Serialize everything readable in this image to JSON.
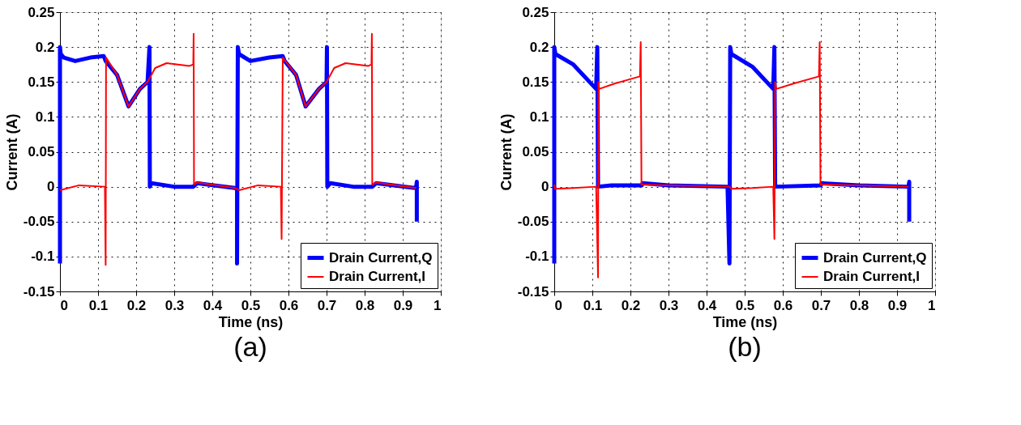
{
  "chart_data": [
    {
      "type": "line",
      "xlabel": "Time (ns)",
      "ylabel": "Current (A)",
      "annotations": [
        "(a)"
      ],
      "xlim": [
        0,
        1
      ],
      "ylim": [
        -0.15,
        0.25
      ],
      "xticks": [
        0,
        0.1,
        0.2,
        0.3,
        0.4,
        0.5,
        0.6,
        0.7,
        0.8,
        0.9,
        1
      ],
      "yticks": [
        -0.15,
        -0.1,
        -0.05,
        0,
        0.05,
        0.1,
        0.15,
        0.2,
        0.25
      ],
      "grid": true,
      "legend": "bottom right",
      "line_style": "solid",
      "series": [
        {
          "name": "Drain Current,Q",
          "color": "#0000ff",
          "x": [
            0,
            0,
            0.002,
            0.01,
            0.04,
            0.08,
            0.115,
            0.12,
            0.15,
            0.18,
            0.21,
            0.23,
            0.235,
            0.236,
            0.24,
            0.3,
            0.35,
            0.36,
            0.46,
            0.465,
            0.465,
            0.467,
            0.47,
            0.5,
            0.55,
            0.585,
            0.59,
            0.62,
            0.645,
            0.68,
            0.7,
            0.701,
            0.702,
            0.71,
            0.77,
            0.82,
            0.83,
            0.935,
            0.937,
            0.937
          ],
          "values": [
            -0.11,
            0.2,
            0.19,
            0.185,
            0.18,
            0.185,
            0.187,
            0.18,
            0.16,
            0.115,
            0.14,
            0.15,
            0.2,
            0.0,
            0.005,
            0,
            0,
            0.005,
            -0.002,
            -0.003,
            -0.11,
            0.2,
            0.19,
            0.18,
            0.185,
            0.187,
            0.18,
            0.16,
            0.115,
            0.14,
            0.15,
            0.2,
            0,
            0.005,
            0,
            0,
            0.005,
            -0.002,
            0.007,
            -0.05
          ]
        },
        {
          "name": "Drain Current,I",
          "color": "#ff0000",
          "x": [
            0,
            0.05,
            0.118,
            0.12,
            0.121,
            0.15,
            0.18,
            0.21,
            0.23,
            0.25,
            0.28,
            0.34,
            0.35,
            0.351,
            0.352,
            0.36,
            0.46,
            0.47,
            0.52,
            0.58,
            0.582,
            0.585,
            0.62,
            0.645,
            0.68,
            0.7,
            0.72,
            0.75,
            0.81,
            0.818,
            0.819,
            0.82,
            0.83,
            0.935
          ],
          "values": [
            -0.005,
            0.002,
            0,
            -0.112,
            0.185,
            0.16,
            0.115,
            0.14,
            0.15,
            0.17,
            0.177,
            0.173,
            0.175,
            0.219,
            0.003,
            0.006,
            -0.002,
            -0.005,
            0.002,
            0,
            -0.075,
            0.185,
            0.16,
            0.115,
            0.14,
            0.15,
            0.17,
            0.177,
            0.173,
            0.175,
            0.219,
            0.003,
            0.006,
            -0.002
          ]
        }
      ]
    },
    {
      "type": "line",
      "xlabel": "Time (ns)",
      "ylabel": "Current (A)",
      "annotations": [
        "(b)"
      ],
      "xlim": [
        0,
        1
      ],
      "ylim": [
        -0.15,
        0.25
      ],
      "xticks": [
        0,
        0.1,
        0.2,
        0.3,
        0.4,
        0.5,
        0.6,
        0.7,
        0.8,
        0.9,
        1
      ],
      "yticks": [
        -0.15,
        -0.1,
        -0.05,
        0,
        0.05,
        0.1,
        0.15,
        0.2,
        0.25
      ],
      "grid": true,
      "legend": "bottom right",
      "line_style": "solid",
      "series": [
        {
          "name": "Drain Current,Q",
          "color": "#0000ff",
          "x": [
            0,
            0,
            0.003,
            0.05,
            0.11,
            0.113,
            0.115,
            0.15,
            0.23,
            0.232,
            0.3,
            0.455,
            0.46,
            0.462,
            0.465,
            0.52,
            0.575,
            0.578,
            0.58,
            0.7,
            0.702,
            0.8,
            0.93,
            0.932,
            0.932
          ],
          "values": [
            -0.11,
            0.2,
            0.19,
            0.175,
            0.14,
            0.2,
            0,
            0.002,
            0.002,
            0.005,
            0.002,
            0,
            -0.11,
            0.2,
            0.19,
            0.172,
            0.14,
            0.2,
            0,
            0.002,
            0.005,
            0.002,
            0,
            0.007,
            -0.05
          ]
        },
        {
          "name": "Drain Current,I",
          "color": "#ff0000",
          "x": [
            0,
            0.002,
            0.05,
            0.11,
            0.115,
            0.116,
            0.118,
            0.16,
            0.225,
            0.227,
            0.229,
            0.3,
            0.46,
            0.465,
            0.52,
            0.575,
            0.578,
            0.58,
            0.583,
            0.63,
            0.695,
            0.697,
            0.699,
            0.8,
            0.93
          ],
          "values": [
            0.003,
            -0.003,
            -0.002,
            0,
            -0.13,
            0.15,
            0.14,
            0.148,
            0.158,
            0.207,
            0.003,
            0.002,
            0,
            -0.003,
            -0.002,
            0,
            -0.075,
            0.15,
            0.14,
            0.148,
            0.158,
            0.207,
            0.003,
            0.002,
            0
          ]
        }
      ]
    }
  ]
}
